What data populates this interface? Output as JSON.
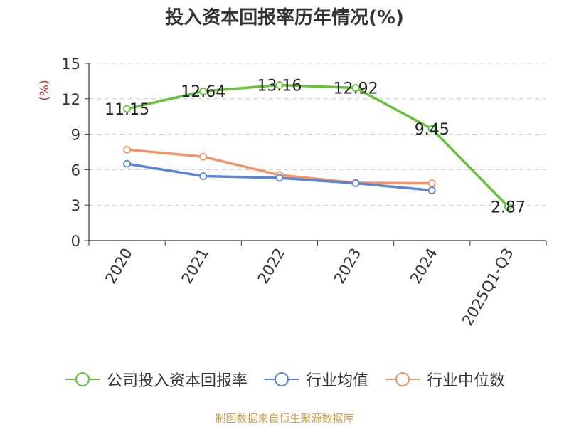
{
  "chart_data": {
    "type": "line",
    "title": "投入资本回报率历年情况(%)",
    "ylabel": "(%)",
    "categories": [
      "2020",
      "2021",
      "2022",
      "2023",
      "2024",
      "2025Q1-Q3"
    ],
    "ylim": [
      0,
      15
    ],
    "yticks": [
      0,
      3,
      6,
      9,
      12,
      15
    ],
    "grid": true,
    "legend_position": "bottom",
    "series": [
      {
        "name": "公司投入资本回报率",
        "color": "#67c23a",
        "values": [
          11.15,
          12.64,
          13.16,
          12.92,
          9.45,
          2.87
        ],
        "labels": [
          "11.15",
          "12.64",
          "13.16",
          "12.92",
          "9.45",
          "2.87"
        ]
      },
      {
        "name": "行业均值",
        "color": "#5b86d8",
        "values": [
          6.5,
          5.45,
          5.3,
          4.85,
          4.25,
          null
        ]
      },
      {
        "name": "行业中位数",
        "color": "#f49366",
        "values": [
          7.7,
          7.1,
          5.55,
          4.88,
          4.85,
          null
        ]
      }
    ]
  },
  "source": "制图数据来自恒生聚源数据库"
}
